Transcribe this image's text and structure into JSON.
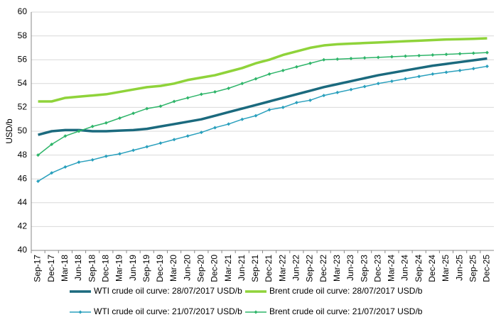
{
  "chart_data": {
    "type": "line",
    "y_label": "USD/b",
    "categories": [
      "Sep-17",
      "Dec-17",
      "Mar-18",
      "Jun-18",
      "Sep-18",
      "Dec-18",
      "Mar-19",
      "Jun-19",
      "Sep-19",
      "Dec-19",
      "Mar-20",
      "Jun-20",
      "Sep-20",
      "Dec-20",
      "Mar-21",
      "Jun-21",
      "Sep-21",
      "Dec-21",
      "Mar-22",
      "Jun-22",
      "Sep-22",
      "Dec-22",
      "Mar-23",
      "Jun-23",
      "Sep-23",
      "Dec-23",
      "Mar-24",
      "Jun-24",
      "Sep-24",
      "Dec-24",
      "Mar-25",
      "Jun-25",
      "Sep-25",
      "Dec-25"
    ],
    "ylim": [
      40,
      60
    ],
    "yticks": [
      40,
      42,
      44,
      46,
      48,
      50,
      52,
      54,
      56,
      58,
      60
    ],
    "grid": true,
    "series": [
      {
        "name": "WTI crude oil curve: 28/07/2017 USD/b",
        "color": "#1b6a7e",
        "marker": false,
        "values": [
          49.7,
          50.0,
          50.1,
          50.1,
          50.0,
          50.0,
          50.05,
          50.1,
          50.2,
          50.4,
          50.6,
          50.8,
          51.0,
          51.3,
          51.6,
          51.9,
          52.2,
          52.5,
          52.8,
          53.1,
          53.4,
          53.7,
          53.95,
          54.2,
          54.45,
          54.7,
          54.9,
          55.1,
          55.3,
          55.5,
          55.65,
          55.8,
          55.95,
          56.1
        ]
      },
      {
        "name": "Brent crude oil curve: 28/07/2017 USD/b",
        "color": "#8fd33a",
        "marker": false,
        "values": [
          52.5,
          52.5,
          52.8,
          52.9,
          53.0,
          53.1,
          53.3,
          53.5,
          53.7,
          53.8,
          54.0,
          54.3,
          54.5,
          54.7,
          55.0,
          55.3,
          55.7,
          56.0,
          56.4,
          56.7,
          57.0,
          57.2,
          57.3,
          57.35,
          57.4,
          57.45,
          57.5,
          57.55,
          57.6,
          57.65,
          57.7,
          57.72,
          57.75,
          57.8
        ]
      },
      {
        "name": "WTI crude oil curve: 21/07/2017 USD/b",
        "color": "#2aa0bd",
        "marker": true,
        "values": [
          45.8,
          46.5,
          47.0,
          47.4,
          47.6,
          47.9,
          48.1,
          48.4,
          48.7,
          49.0,
          49.3,
          49.6,
          49.9,
          50.3,
          50.6,
          51.0,
          51.3,
          51.8,
          52.0,
          52.4,
          52.6,
          53.0,
          53.25,
          53.5,
          53.75,
          54.0,
          54.2,
          54.4,
          54.6,
          54.8,
          54.95,
          55.1,
          55.25,
          55.45
        ]
      },
      {
        "name": "Brent crude oil curve: 21/07/2017 USD/b",
        "color": "#2fb56a",
        "marker": true,
        "values": [
          48.0,
          48.9,
          49.6,
          50.0,
          50.4,
          50.7,
          51.1,
          51.5,
          51.9,
          52.1,
          52.5,
          52.8,
          53.1,
          53.3,
          53.6,
          54.0,
          54.4,
          54.8,
          55.1,
          55.4,
          55.7,
          56.0,
          56.05,
          56.1,
          56.15,
          56.2,
          56.25,
          56.3,
          56.35,
          56.4,
          56.45,
          56.5,
          56.55,
          56.6
        ]
      }
    ]
  }
}
